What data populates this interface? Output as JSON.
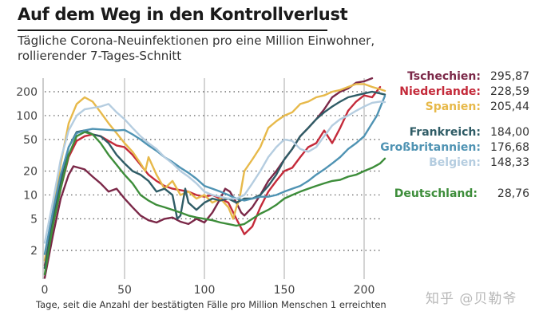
{
  "header": {
    "title": "Auf dem Weg in den Kontrollverlust",
    "subtitle_line1": "Tägliche Corona-Neuinfektionen pro eine Million Einwohner,",
    "subtitle_line2": "rollierender 7-Tages-Schnitt"
  },
  "watermark": "知乎 @贝勒爷",
  "chart_data": {
    "type": "line",
    "title": "Auf dem Weg in den Kontrollverlust",
    "subtitle": "Tägliche Corona-Neuinfektionen pro eine Million Einwohner, rollierender 7-Tages-Schnitt",
    "xlabel": "Tage, seit die Anzahl der bestätigten Fälle pro Million Menschen 1 erreichten",
    "ylabel": "",
    "yscale": "log",
    "xlim": [
      0,
      215
    ],
    "ylim": [
      0.9,
      300
    ],
    "xticks": [
      0,
      50,
      100,
      150,
      200
    ],
    "yticks": [
      2,
      5,
      10,
      20,
      50,
      100,
      200
    ],
    "grid": true,
    "legend": "right",
    "series": [
      {
        "name": "Tschechien",
        "label": "Tschechien:",
        "value_label": "295,87",
        "color": "#7b2848",
        "x": [
          0,
          5,
          10,
          15,
          18,
          25,
          30,
          35,
          40,
          45,
          50,
          55,
          60,
          65,
          70,
          75,
          80,
          85,
          90,
          95,
          100,
          105,
          110,
          113,
          116,
          120,
          123,
          125,
          130,
          135,
          140,
          145,
          150,
          155,
          160,
          165,
          170,
          175,
          180,
          185,
          190,
          195,
          200,
          205
        ],
        "values": [
          0.9,
          3,
          9,
          18,
          23,
          21,
          17,
          14,
          11,
          12,
          9,
          7,
          5.5,
          4.8,
          4.5,
          5,
          5.2,
          4.6,
          4.3,
          5,
          4.5,
          6,
          9,
          12,
          11,
          8,
          6,
          5.5,
          7,
          10,
          15,
          20,
          28,
          38,
          55,
          70,
          90,
          120,
          170,
          200,
          220,
          260,
          270,
          296
        ]
      },
      {
        "name": "Niederlande",
        "label": "Niederlande:",
        "value_label": "228,59",
        "color": "#c42a3a",
        "x": [
          0,
          5,
          10,
          15,
          20,
          25,
          30,
          35,
          40,
          45,
          50,
          55,
          60,
          65,
          70,
          75,
          80,
          85,
          90,
          95,
          100,
          105,
          110,
          115,
          120,
          125,
          130,
          135,
          140,
          145,
          150,
          155,
          160,
          165,
          170,
          175,
          180,
          185,
          190,
          195,
          200,
          205,
          210
        ],
        "values": [
          1.3,
          4,
          12,
          30,
          48,
          55,
          58,
          55,
          48,
          42,
          40,
          32,
          24,
          18,
          15,
          13,
          12,
          11.5,
          11,
          10,
          9.5,
          10,
          9,
          8,
          5,
          3.2,
          4,
          7,
          11,
          15,
          20,
          22,
          30,
          40,
          45,
          65,
          45,
          70,
          115,
          150,
          180,
          170,
          229
        ]
      },
      {
        "name": "Spanien",
        "label": "Spanien:",
        "value_label": "205,44",
        "color": "#e7b94a",
        "x": [
          0,
          5,
          10,
          15,
          20,
          25,
          30,
          35,
          40,
          45,
          50,
          55,
          60,
          63,
          65,
          70,
          75,
          80,
          85,
          90,
          95,
          100,
          105,
          110,
          115,
          118,
          120,
          122,
          125,
          130,
          135,
          140,
          145,
          150,
          155,
          160,
          165,
          170,
          175,
          180,
          185,
          190,
          195,
          200,
          205,
          210,
          213
        ],
        "values": [
          1.5,
          6,
          25,
          80,
          140,
          170,
          150,
          110,
          80,
          60,
          45,
          35,
          25,
          20,
          30,
          18,
          12,
          15,
          10,
          11,
          9,
          10,
          8,
          9,
          7,
          5,
          7,
          9,
          20,
          28,
          40,
          70,
          85,
          100,
          110,
          140,
          150,
          170,
          180,
          200,
          210,
          230,
          250,
          250,
          230,
          215,
          205
        ]
      },
      {
        "name": "Frankreich",
        "label": "Frankreich:",
        "value_label": "184,00",
        "color": "#2f5c66",
        "x": [
          0,
          5,
          10,
          15,
          20,
          25,
          30,
          35,
          40,
          45,
          50,
          55,
          60,
          65,
          70,
          75,
          80,
          83,
          85,
          88,
          90,
          95,
          100,
          105,
          110,
          115,
          120,
          125,
          130,
          135,
          140,
          145,
          150,
          155,
          160,
          165,
          170,
          175,
          180,
          185,
          190,
          195,
          200,
          205,
          210,
          213
        ],
        "values": [
          1.2,
          5,
          15,
          40,
          62,
          65,
          58,
          55,
          45,
          32,
          25,
          20,
          18,
          15,
          11,
          12,
          10,
          5,
          5.5,
          12,
          8,
          6.5,
          8,
          9,
          8.5,
          9,
          8,
          9,
          9,
          10,
          13,
          18,
          28,
          38,
          55,
          70,
          90,
          110,
          130,
          150,
          170,
          180,
          190,
          200,
          190,
          184
        ]
      },
      {
        "name": "Großbritannien",
        "label": "Großbritannien:",
        "value_label": "176,68",
        "color": "#4f93b3",
        "x": [
          0,
          5,
          10,
          15,
          20,
          25,
          30,
          35,
          40,
          45,
          50,
          55,
          60,
          65,
          70,
          75,
          80,
          85,
          90,
          95,
          100,
          105,
          110,
          115,
          120,
          125,
          130,
          135,
          140,
          145,
          150,
          155,
          160,
          165,
          170,
          175,
          180,
          185,
          190,
          195,
          200,
          205,
          208,
          213
        ],
        "values": [
          1.8,
          6,
          18,
          40,
          60,
          65,
          68,
          67,
          66,
          65,
          66,
          58,
          50,
          42,
          36,
          30,
          26,
          22,
          19,
          16,
          13,
          12,
          11,
          10,
          9,
          8.5,
          9,
          9.5,
          9.5,
          10,
          11,
          12,
          13,
          15,
          18,
          21,
          25,
          30,
          38,
          45,
          55,
          80,
          100,
          177
        ]
      },
      {
        "name": "Belgien",
        "label": "Belgien:",
        "value_label": "148,33",
        "color": "#b5cde0",
        "x": [
          0,
          5,
          10,
          15,
          20,
          25,
          30,
          35,
          40,
          45,
          50,
          55,
          60,
          65,
          70,
          75,
          80,
          85,
          90,
          95,
          100,
          105,
          110,
          115,
          120,
          125,
          130,
          135,
          140,
          145,
          150,
          155,
          160,
          165,
          170,
          175,
          180,
          185,
          190,
          195,
          200,
          205,
          210,
          213
        ],
        "values": [
          2.5,
          8,
          28,
          65,
          100,
          120,
          125,
          130,
          140,
          110,
          90,
          70,
          55,
          45,
          38,
          30,
          25,
          20,
          17,
          14,
          11,
          10,
          9.5,
          9,
          9,
          10,
          14,
          20,
          30,
          40,
          50,
          48,
          38,
          35,
          40,
          55,
          75,
          90,
          100,
          115,
          130,
          145,
          150,
          148
        ]
      },
      {
        "name": "Deutschland",
        "label": "Deutschland:",
        "value_label": "28,76",
        "color": "#3d8d3a",
        "x": [
          0,
          5,
          10,
          15,
          20,
          25,
          30,
          35,
          40,
          45,
          50,
          55,
          60,
          65,
          70,
          75,
          80,
          85,
          90,
          95,
          100,
          105,
          110,
          115,
          120,
          125,
          130,
          135,
          140,
          145,
          150,
          155,
          160,
          165,
          170,
          175,
          180,
          185,
          190,
          195,
          200,
          205,
          210,
          213
        ],
        "values": [
          1,
          4,
          12,
          32,
          55,
          62,
          58,
          45,
          32,
          24,
          18,
          14,
          10,
          8.5,
          7.5,
          7,
          6.5,
          6,
          5.5,
          5.2,
          5,
          4.8,
          4.5,
          4.3,
          4.1,
          4.3,
          5,
          5.8,
          6.5,
          7.5,
          9,
          10,
          11,
          12,
          13,
          14,
          15,
          15.5,
          17,
          18,
          20,
          22,
          25,
          28.76
        ]
      }
    ]
  }
}
